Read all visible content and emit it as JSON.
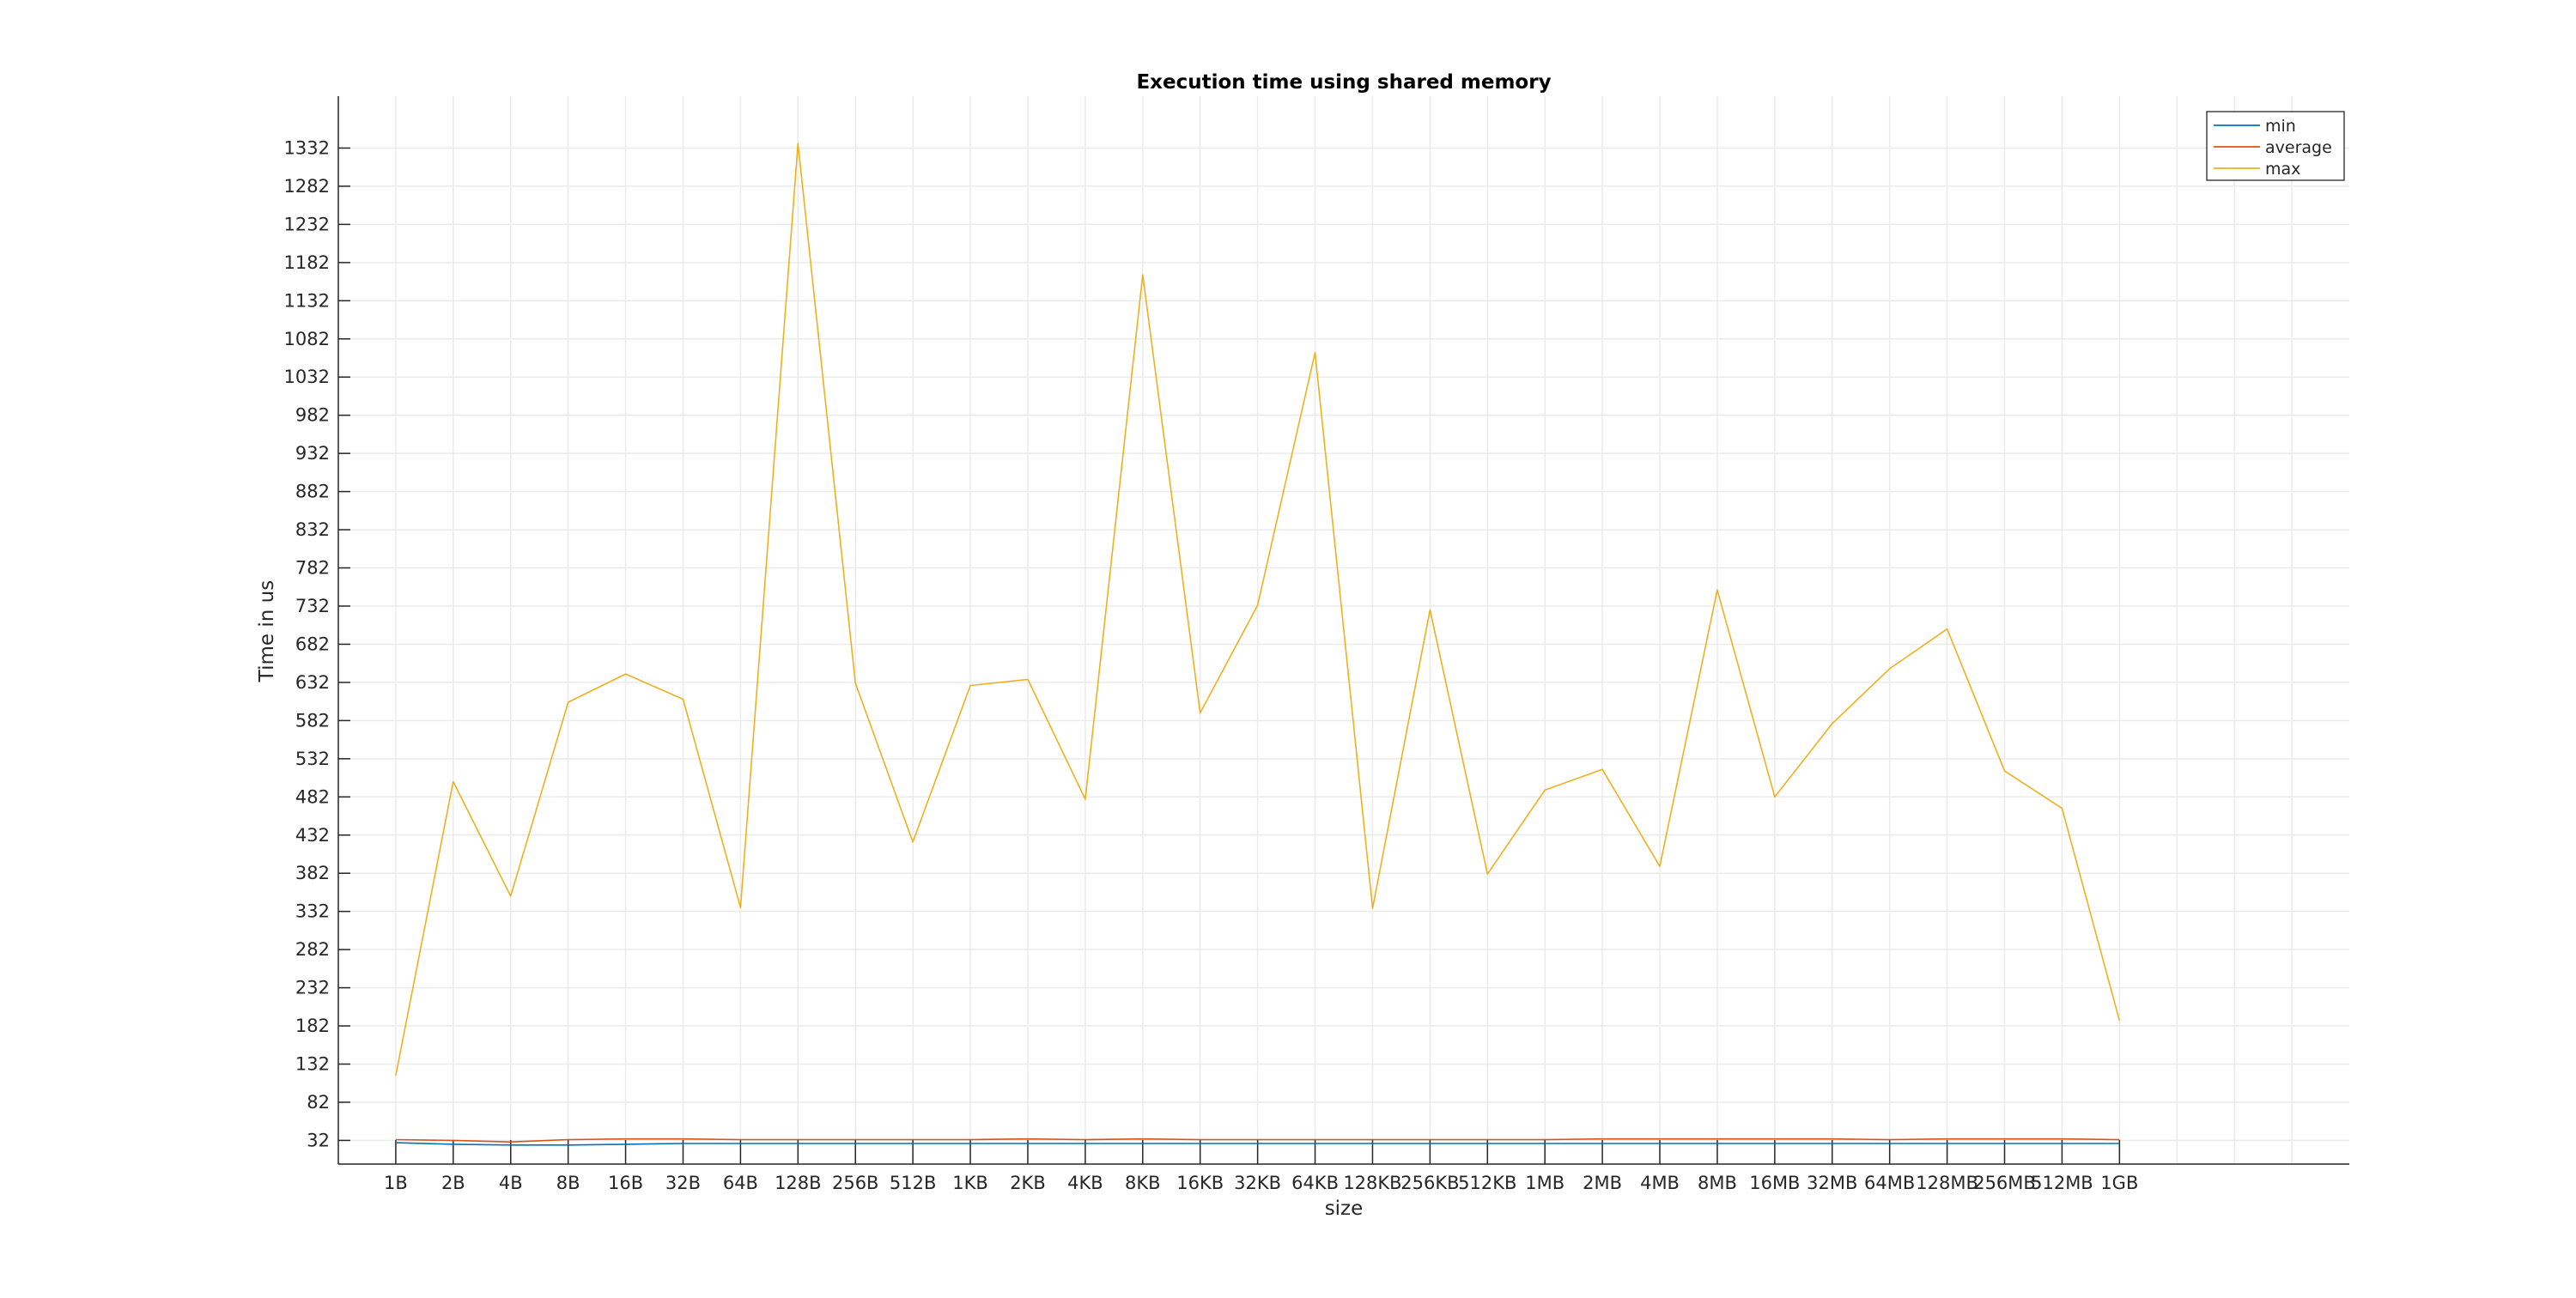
{
  "chart_data": {
    "type": "line",
    "title": "Execution time using shared memory",
    "xlabel": "size",
    "ylabel": "Time in us",
    "categories": [
      "1B",
      "2B",
      "4B",
      "8B",
      "16B",
      "32B",
      "64B",
      "128B",
      "256B",
      "512B",
      "1KB",
      "2KB",
      "4KB",
      "8KB",
      "16KB",
      "32KB",
      "64KB",
      "128KB",
      "256KB",
      "512KB",
      "1MB",
      "2MB",
      "4MB",
      "8MB",
      "16MB",
      "32MB",
      "64MB",
      "128MB",
      "256MB",
      "512MB",
      "1GB"
    ],
    "yticks": [
      32,
      82,
      132,
      182,
      232,
      282,
      332,
      382,
      432,
      482,
      532,
      582,
      632,
      682,
      732,
      782,
      832,
      882,
      932,
      982,
      1032,
      1082,
      1132,
      1182,
      1232,
      1282,
      1332
    ],
    "ylim": [
      1,
      1400
    ],
    "xlim": [
      0,
      35
    ],
    "grid": true,
    "legend_position": "top-right",
    "series": [
      {
        "name": "min",
        "color": "#0072BD",
        "values": [
          29,
          27,
          26,
          26,
          27,
          28,
          28,
          28,
          28,
          28,
          28,
          28,
          28,
          28,
          28,
          28,
          28,
          28,
          28,
          28,
          28,
          28,
          28,
          28,
          28,
          28,
          28,
          28,
          28,
          28,
          28
        ]
      },
      {
        "name": "average",
        "color": "#D95319",
        "values": [
          33,
          32,
          30,
          33,
          34,
          34,
          33,
          33,
          33,
          33,
          33,
          34,
          33,
          34,
          33,
          33,
          33,
          33,
          33,
          33,
          33,
          34,
          34,
          34,
          34,
          34,
          33,
          34,
          34,
          34,
          33
        ]
      },
      {
        "name": "max",
        "color": "#EDB120",
        "values": [
          117,
          502,
          352,
          606,
          643,
          610,
          337,
          1338,
          631,
          423,
          628,
          636,
          479,
          1166,
          592,
          733,
          1064,
          336,
          727,
          381,
          491,
          518,
          391,
          753,
          482,
          578,
          650,
          702,
          516,
          467,
          189
        ]
      }
    ]
  }
}
